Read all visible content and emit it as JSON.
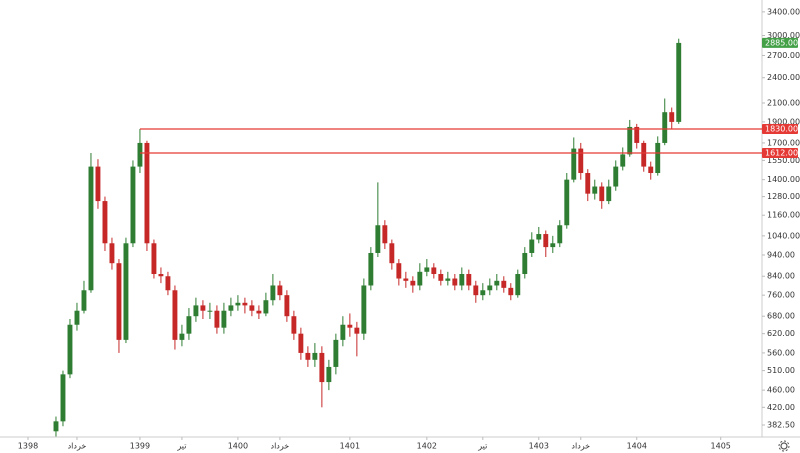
{
  "chart_data": {
    "type": "candlestick",
    "up_color": "#2e7d32",
    "down_color": "#c62828",
    "log_scale": true,
    "ylim": [
      359,
      3620
    ],
    "yticks": [
      {
        "value": 382.5,
        "label": "382.50"
      },
      {
        "value": 420,
        "label": "420.00"
      },
      {
        "value": 460,
        "label": "460.00"
      },
      {
        "value": 510,
        "label": "510.00"
      },
      {
        "value": 560,
        "label": "560.00"
      },
      {
        "value": 620,
        "label": "620.00"
      },
      {
        "value": 680,
        "label": "680.00"
      },
      {
        "value": 760,
        "label": "760.00"
      },
      {
        "value": 840,
        "label": "840.00"
      },
      {
        "value": 940,
        "label": "940.00"
      },
      {
        "value": 1040,
        "label": "1040.00"
      },
      {
        "value": 1160,
        "label": "1160.00"
      },
      {
        "value": 1280,
        "label": "1280.00"
      },
      {
        "value": 1400,
        "label": "1400.00"
      },
      {
        "value": 1550,
        "label": "1550.00"
      },
      {
        "value": 1700,
        "label": "1700.00"
      },
      {
        "value": 1900,
        "label": "1900.00"
      },
      {
        "value": 2100,
        "label": "2100.00"
      },
      {
        "value": 2400,
        "label": "2400.00"
      },
      {
        "value": 2700,
        "label": "2700.00"
      },
      {
        "value": 3000,
        "label": "3000.00"
      },
      {
        "value": 3400,
        "label": "3400.00"
      }
    ],
    "xlim": [
      -8,
      100.9
    ],
    "xticks": [
      {
        "value": -4,
        "label": "1398"
      },
      {
        "value": 3,
        "label": "خرداد"
      },
      {
        "value": 12,
        "label": "1399"
      },
      {
        "value": 18,
        "label": "تیر"
      },
      {
        "value": 26,
        "label": "1400"
      },
      {
        "value": 32,
        "label": "خرداد"
      },
      {
        "value": 42,
        "label": "1401"
      },
      {
        "value": 53,
        "label": "1402"
      },
      {
        "value": 61,
        "label": "تیر"
      },
      {
        "value": 69,
        "label": "1403"
      },
      {
        "value": 75,
        "label": "خرداد"
      },
      {
        "value": 83,
        "label": "1404"
      },
      {
        "value": 95,
        "label": "1405"
      }
    ],
    "open": [
      370,
      390,
      500,
      650,
      700,
      780,
      1500,
      1250,
      1000,
      900,
      600,
      1000,
      1500,
      1700,
      1000,
      850,
      840,
      780,
      600,
      620,
      680,
      720,
      700,
      700,
      640,
      700,
      720,
      730,
      720,
      700,
      690,
      740,
      800,
      760,
      680,
      620,
      560,
      540,
      560,
      480,
      520,
      600,
      650,
      640,
      620,
      800,
      950,
      1100,
      1000,
      900,
      830,
      820,
      800,
      860,
      880,
      850,
      820,
      830,
      800,
      850,
      800,
      760,
      780,
      800,
      820,
      790,
      760,
      850,
      950,
      1020,
      1050,
      980,
      1000,
      1100,
      1400,
      1650,
      1450,
      1300,
      1350,
      1250,
      1350,
      1500,
      1600,
      1850,
      1700,
      1500,
      1450,
      1700,
      2000,
      1900
    ],
    "high": [
      400,
      510,
      670,
      730,
      820,
      1612,
      1560,
      1280,
      1030,
      920,
      1030,
      1550,
      1830,
      1720,
      1020,
      880,
      860,
      800,
      650,
      710,
      750,
      740,
      730,
      720,
      730,
      750,
      760,
      750,
      740,
      720,
      770,
      850,
      820,
      780,
      700,
      640,
      580,
      590,
      580,
      540,
      620,
      680,
      690,
      660,
      830,
      980,
      1380,
      1130,
      1020,
      920,
      860,
      840,
      900,
      920,
      900,
      870,
      860,
      850,
      880,
      870,
      820,
      810,
      830,
      850,
      840,
      810,
      870,
      980,
      1060,
      1090,
      1070,
      1040,
      1130,
      1450,
      1750,
      1700,
      1480,
      1400,
      1380,
      1400,
      1550,
      1660,
      1920,
      1880,
      1720,
      1540,
      1760,
      2150,
      2050,
      2950
    ],
    "low": [
      360,
      380,
      490,
      630,
      690,
      770,
      1200,
      960,
      870,
      560,
      590,
      980,
      1450,
      960,
      830,
      810,
      760,
      570,
      580,
      600,
      660,
      670,
      670,
      620,
      620,
      680,
      700,
      690,
      680,
      670,
      680,
      720,
      740,
      660,
      600,
      540,
      520,
      520,
      420,
      460,
      500,
      580,
      610,
      550,
      600,
      780,
      930,
      970,
      870,
      800,
      790,
      770,
      780,
      840,
      830,
      800,
      800,
      780,
      780,
      780,
      730,
      740,
      760,
      780,
      770,
      740,
      750,
      830,
      930,
      1000,
      930,
      950,
      980,
      1080,
      1380,
      1400,
      1250,
      1260,
      1200,
      1230,
      1320,
      1470,
      1580,
      1650,
      1460,
      1400,
      1430,
      1680,
      1830,
      1880
    ],
    "close": [
      390,
      500,
      650,
      700,
      780,
      1500,
      1250,
      1000,
      900,
      600,
      1000,
      1500,
      1700,
      1000,
      850,
      840,
      780,
      600,
      620,
      680,
      720,
      700,
      700,
      640,
      700,
      720,
      730,
      720,
      700,
      690,
      740,
      800,
      760,
      680,
      620,
      560,
      540,
      560,
      480,
      520,
      600,
      650,
      640,
      620,
      800,
      950,
      1100,
      1000,
      900,
      830,
      820,
      800,
      860,
      880,
      850,
      820,
      830,
      800,
      850,
      800,
      760,
      780,
      800,
      820,
      790,
      760,
      850,
      950,
      1020,
      1050,
      980,
      1000,
      1100,
      1400,
      1650,
      1450,
      1300,
      1350,
      1250,
      1350,
      1500,
      1600,
      1850,
      1700,
      1500,
      1450,
      1700,
      2000,
      1900,
      2885
    ],
    "hlines": [
      {
        "value": 1830,
        "label": "1830.00",
        "color": "#e53935"
      },
      {
        "value": 1612,
        "label": "1612.00",
        "color": "#e53935"
      }
    ],
    "last_price": {
      "value": 2885,
      "label": "2885.00",
      "color": "#43a047"
    }
  }
}
